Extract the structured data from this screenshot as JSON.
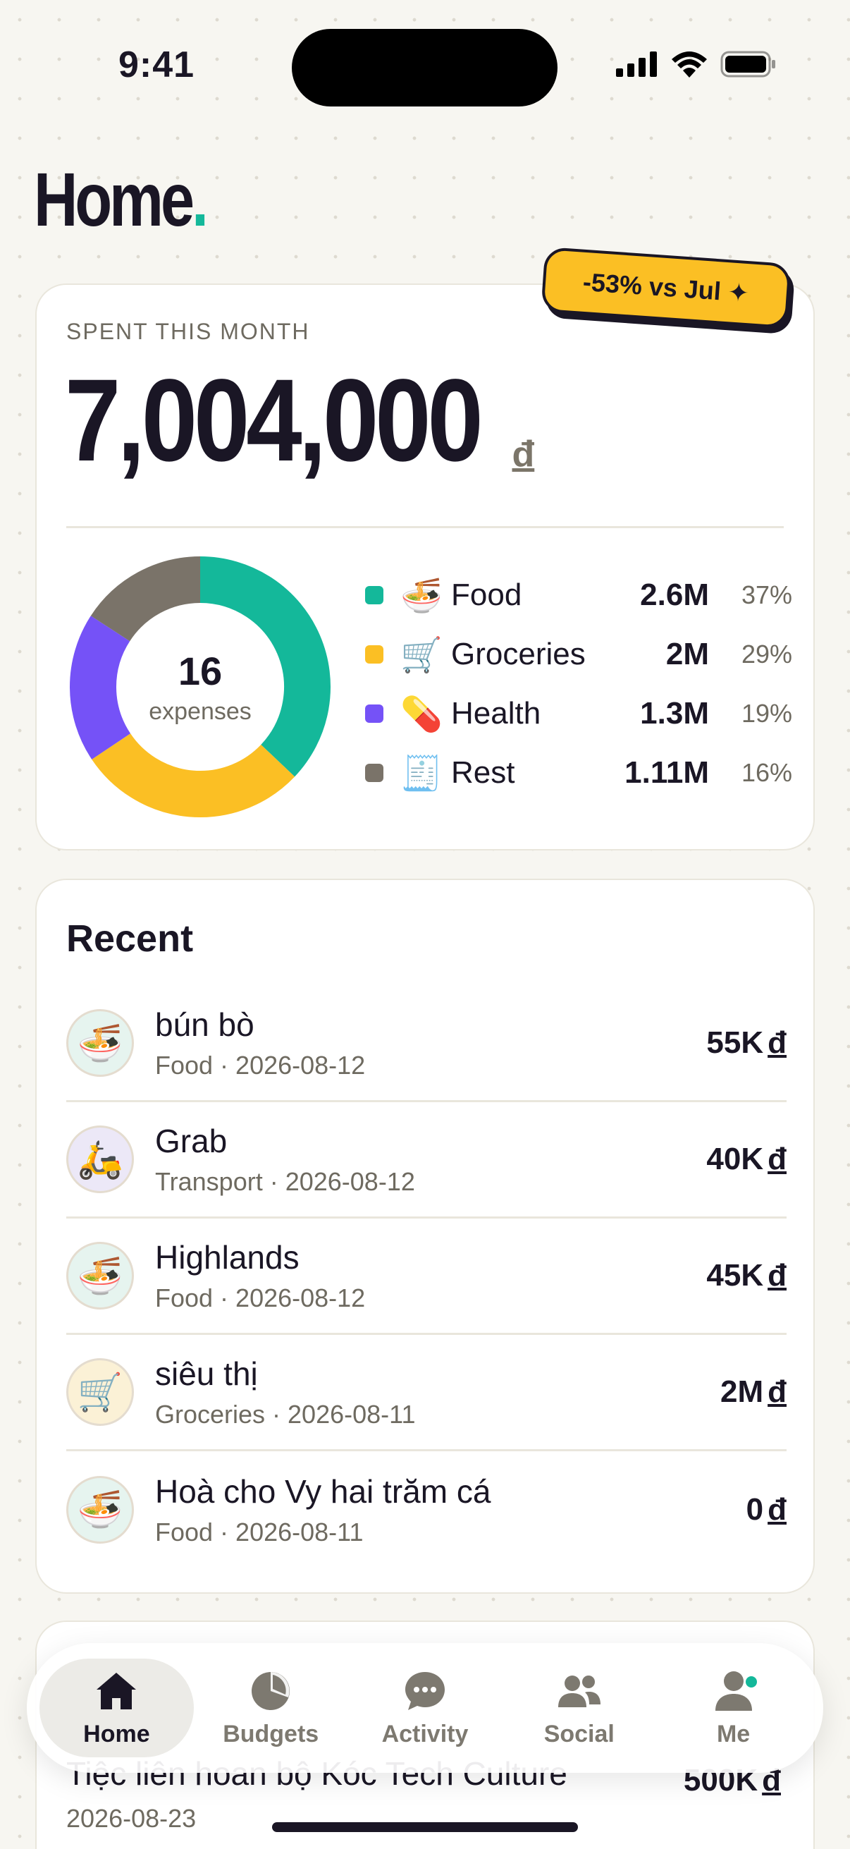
{
  "status_bar": {
    "time": "9:41"
  },
  "page": {
    "title": "Home",
    "title_dot": "."
  },
  "spent": {
    "label": "SPENT THIS MONTH",
    "amount": "7,004,000",
    "currency": "đ",
    "badge": "-53% vs Jul",
    "badge_icon": "✦"
  },
  "donut": {
    "count": "16",
    "count_label": "expenses"
  },
  "chart_data": {
    "type": "pie",
    "donut": true,
    "categories": [
      "Food",
      "Groceries",
      "Health",
      "Rest"
    ],
    "values": [
      2.6,
      2,
      1.3,
      1.11
    ],
    "value_labels": [
      "2.6M",
      "2M",
      "1.3M",
      "1.11M"
    ],
    "percents": [
      37,
      29,
      19,
      16
    ],
    "percent_labels": [
      "37%",
      "29%",
      "19%",
      "16%"
    ],
    "colors": [
      "#14b89a",
      "#fbbf24",
      "#7552f7",
      "#7a7369"
    ],
    "emojis": [
      "🍜",
      "🛒",
      "💊",
      "🧾"
    ]
  },
  "recent": {
    "title": "Recent",
    "items": [
      {
        "name": "bún bò",
        "meta": "Food · 2026-08-12",
        "amount": "55K",
        "currency": "đ",
        "icon": "🍜",
        "icon_bg": "#e6f4ef"
      },
      {
        "name": "Grab",
        "meta": "Transport · 2026-08-12",
        "amount": "40K",
        "currency": "đ",
        "icon": "🛵",
        "icon_bg": "#ece8f7"
      },
      {
        "name": "Highlands",
        "meta": "Food · 2026-08-12",
        "amount": "45K",
        "currency": "đ",
        "icon": "🍜",
        "icon_bg": "#e6f4ef"
      },
      {
        "name": "siêu thị",
        "meta": "Groceries · 2026-08-11",
        "amount": "2M",
        "currency": "đ",
        "icon": "🛒",
        "icon_bg": "#fbf1d6"
      },
      {
        "name": "Hoà cho Vy hai trăm cá",
        "meta": "Food · 2026-08-11",
        "amount": "0",
        "currency": "đ",
        "icon": "🍜",
        "icon_bg": "#e6f4ef"
      }
    ]
  },
  "peek": {
    "title": "Tiệc liên hoan bộ Kóc Tech Culture",
    "date": "2026-08-23",
    "amount": "500K",
    "currency": "đ"
  },
  "tabs": [
    {
      "label": "Home",
      "icon": "home-icon",
      "active": true
    },
    {
      "label": "Budgets",
      "icon": "pie-chart-icon",
      "active": false
    },
    {
      "label": "Activity",
      "icon": "chat-bubble-icon",
      "active": false
    },
    {
      "label": "Social",
      "icon": "people-icon",
      "active": false
    },
    {
      "label": "Me",
      "icon": "person-icon",
      "active": false
    }
  ]
}
